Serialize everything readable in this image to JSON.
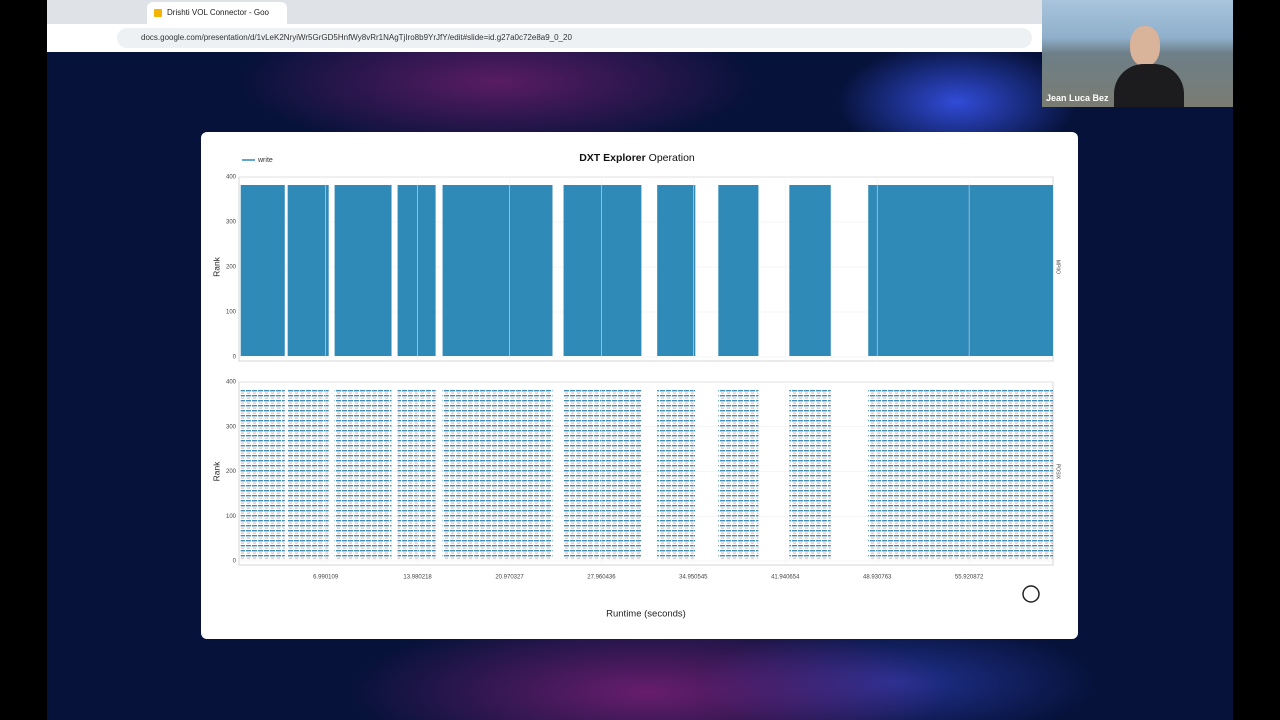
{
  "browser": {
    "tab_title": "Drishti VOL Connector - Goo",
    "url": "docs.google.com/presentation/d/1vLeK2NryiWr5GrGD5HnfWy8vRr1NAgTjIro8b9YrJfY/edit#slide=id.g27a0c72e8a9_0_20"
  },
  "participant": {
    "name": "Jean Luca Bez"
  },
  "chart_data": {
    "type": "interval",
    "title_bold": "DXT Explorer",
    "title": "Operation",
    "legend": "write",
    "xlabel": "Runtime (seconds)",
    "xlim": [
      0.4,
      62.3
    ],
    "xticks": [
      6.990109,
      13.980218,
      20.970327,
      27.960436,
      34.950545,
      41.940654,
      48.930763,
      55.920872
    ],
    "panels": [
      {
        "label": "MPIIO",
        "ylabel": "Rank",
        "ylim": [
          0,
          400
        ],
        "yticks": [
          0,
          100,
          200,
          300,
          400
        ],
        "color": "#2f8ab8",
        "style": "solid",
        "intervals": [
          [
            0.53,
            3.88
          ],
          [
            4.1,
            7.22
          ],
          [
            7.67,
            12.0
          ],
          [
            12.46,
            15.35
          ],
          [
            15.88,
            24.24
          ],
          [
            25.08,
            31.0
          ],
          [
            32.2,
            35.1
          ],
          [
            36.85,
            39.9
          ],
          [
            42.25,
            45.4
          ],
          [
            48.25,
            62.3
          ]
        ]
      },
      {
        "label": "POSIX",
        "ylabel": "Rank",
        "ylim": [
          0,
          400
        ],
        "yticks": [
          0,
          100,
          200,
          300,
          400
        ],
        "color": "#3d8fb5",
        "style": "striped",
        "intervals": [
          [
            0.53,
            3.88
          ],
          [
            4.1,
            7.22
          ],
          [
            7.67,
            12.0
          ],
          [
            12.46,
            15.35
          ],
          [
            15.88,
            24.24
          ],
          [
            25.08,
            31.0
          ],
          [
            32.2,
            35.1
          ],
          [
            36.85,
            39.9
          ],
          [
            42.25,
            45.4
          ],
          [
            48.25,
            62.3
          ]
        ]
      }
    ]
  }
}
